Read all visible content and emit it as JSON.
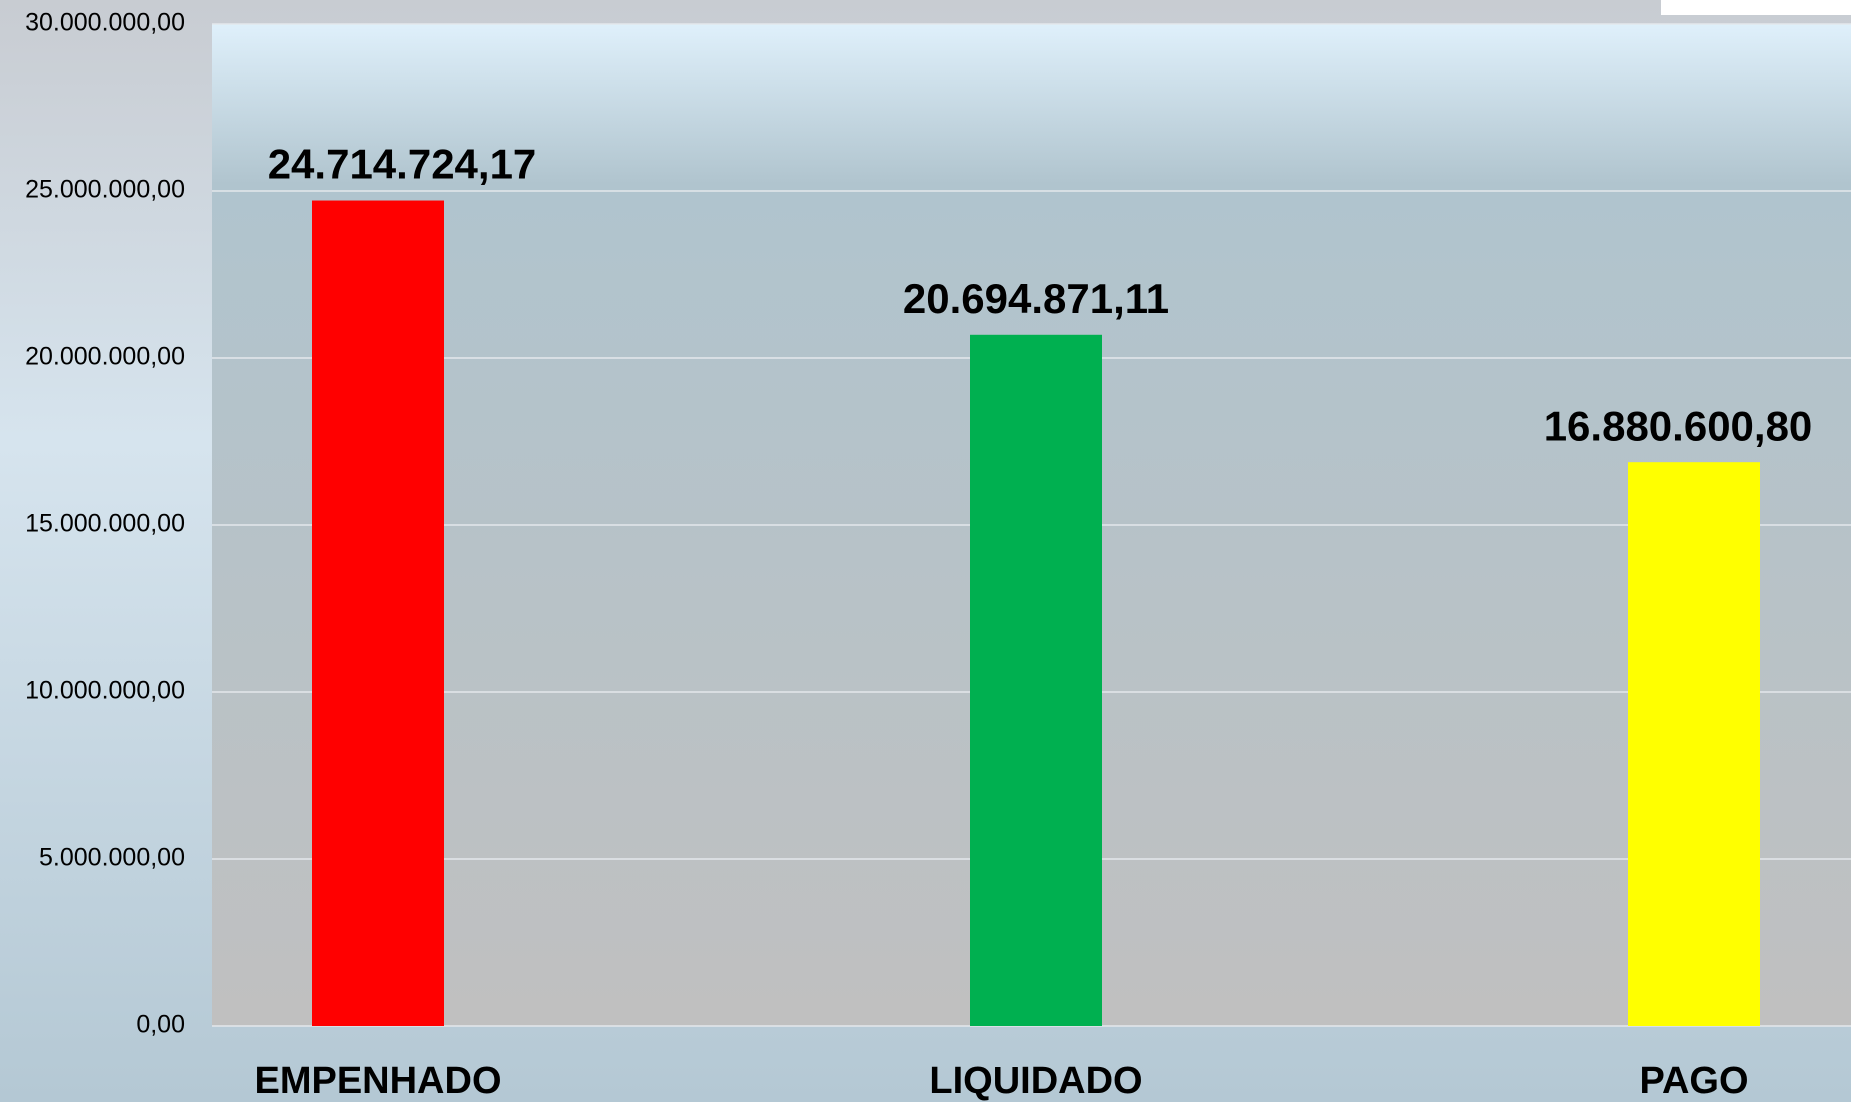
{
  "chart_data": {
    "type": "bar",
    "categories": [
      "EMPENHADO",
      "LIQUIDADO",
      "PAGO"
    ],
    "values": [
      24714724.17,
      20694871.11,
      16880600.8
    ],
    "value_labels": [
      "24.714.724,17",
      "20.694.871,11",
      "16.880.600,80"
    ],
    "colors": [
      "#ff0000",
      "#00b050",
      "#ffff00"
    ],
    "ylim": [
      0,
      30000000
    ],
    "yticks": [
      {
        "value": 0,
        "label": "0,00"
      },
      {
        "value": 5000000,
        "label": "5.000.000,00"
      },
      {
        "value": 10000000,
        "label": "10.000.000,00"
      },
      {
        "value": 15000000,
        "label": "15.000.000,00"
      },
      {
        "value": 20000000,
        "label": "20.000.000,00"
      },
      {
        "value": 25000000,
        "label": "25.000.000,00"
      },
      {
        "value": 30000000,
        "label": "30.000.000,00"
      }
    ],
    "grid": true
  }
}
